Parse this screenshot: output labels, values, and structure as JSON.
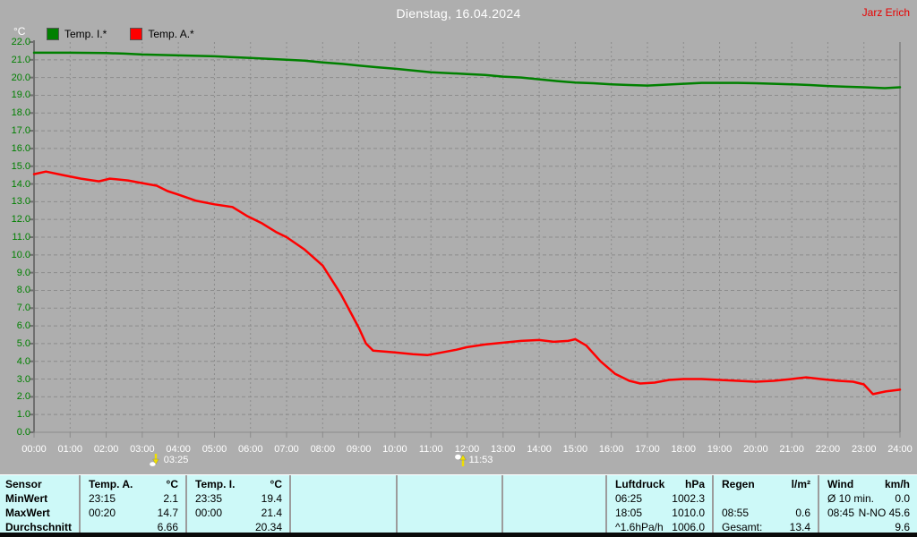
{
  "header": {
    "title": "Dienstag, 16.04.2024",
    "owner": "Jarz Erich"
  },
  "legend": {
    "unit_label": "°C",
    "series": [
      {
        "label": "Temp. I.*",
        "color": "#008000"
      },
      {
        "label": "Temp. A.*",
        "color": "#FF0000"
      }
    ]
  },
  "chart_data": {
    "type": "line",
    "title": "Dienstag, 16.04.2024",
    "xlabel": "",
    "ylabel": "°C",
    "xlim_hours": [
      0,
      24
    ],
    "ylim": [
      0,
      22
    ],
    "grid": true,
    "legend_position": "top-left",
    "x_tick_labels": [
      "00:00",
      "01:00",
      "02:00",
      "03:00",
      "04:00",
      "05:00",
      "06:00",
      "07:00",
      "08:00",
      "09:00",
      "10:00",
      "11:00",
      "12:00",
      "13:00",
      "14:00",
      "15:00",
      "16:00",
      "17:00",
      "18:00",
      "19:00",
      "20:00",
      "21:00",
      "22:00",
      "23:00",
      "24:00"
    ],
    "y_tick_labels": [
      "22.0",
      "21.0",
      "20.0",
      "19.0",
      "18.0",
      "17.0",
      "16.0",
      "15.0",
      "14.0",
      "13.0",
      "12.0",
      "11.0",
      "10.0",
      "9.0",
      "8.0",
      "7.0",
      "6.0",
      "5.0",
      "4.0",
      "3.0",
      "2.0",
      "1.0",
      "0.0"
    ],
    "series": [
      {
        "name": "Temp. I.*",
        "color": "#008000",
        "points": [
          [
            0,
            21.4
          ],
          [
            1,
            21.4
          ],
          [
            2,
            21.38
          ],
          [
            2.5,
            21.35
          ],
          [
            3,
            21.3
          ],
          [
            4,
            21.25
          ],
          [
            5,
            21.2
          ],
          [
            6,
            21.1
          ],
          [
            6.5,
            21.05
          ],
          [
            7,
            21.0
          ],
          [
            7.5,
            20.95
          ],
          [
            8,
            20.85
          ],
          [
            8.5,
            20.78
          ],
          [
            9,
            20.68
          ],
          [
            9.5,
            20.58
          ],
          [
            10,
            20.5
          ],
          [
            10.5,
            20.4
          ],
          [
            11,
            20.3
          ],
          [
            11.5,
            20.25
          ],
          [
            12,
            20.2
          ],
          [
            12.5,
            20.15
          ],
          [
            13,
            20.05
          ],
          [
            13.5,
            20.0
          ],
          [
            14,
            19.9
          ],
          [
            14.5,
            19.8
          ],
          [
            15,
            19.72
          ],
          [
            15.5,
            19.68
          ],
          [
            16,
            19.62
          ],
          [
            16.5,
            19.58
          ],
          [
            17,
            19.55
          ],
          [
            17.5,
            19.6
          ],
          [
            18,
            19.65
          ],
          [
            18.5,
            19.7
          ],
          [
            19,
            19.7
          ],
          [
            19.5,
            19.7
          ],
          [
            20,
            19.68
          ],
          [
            20.5,
            19.65
          ],
          [
            21,
            19.62
          ],
          [
            21.5,
            19.58
          ],
          [
            22,
            19.52
          ],
          [
            22.5,
            19.48
          ],
          [
            23,
            19.45
          ],
          [
            23.58,
            19.4
          ],
          [
            24,
            19.45
          ]
        ]
      },
      {
        "name": "Temp. A.*",
        "color": "#FF0000",
        "points": [
          [
            0,
            14.55
          ],
          [
            0.33,
            14.7
          ],
          [
            0.8,
            14.5
          ],
          [
            1.3,
            14.3
          ],
          [
            1.8,
            14.15
          ],
          [
            2.1,
            14.3
          ],
          [
            2.6,
            14.2
          ],
          [
            3,
            14.05
          ],
          [
            3.4,
            13.9
          ],
          [
            3.7,
            13.6
          ],
          [
            4,
            13.4
          ],
          [
            4.5,
            13.05
          ],
          [
            5,
            12.85
          ],
          [
            5.5,
            12.7
          ],
          [
            5.9,
            12.2
          ],
          [
            6.3,
            11.8
          ],
          [
            6.7,
            11.3
          ],
          [
            7,
            11.0
          ],
          [
            7.5,
            10.3
          ],
          [
            8,
            9.4
          ],
          [
            8.5,
            7.8
          ],
          [
            9,
            5.9
          ],
          [
            9.2,
            5.0
          ],
          [
            9.4,
            4.6
          ],
          [
            10,
            4.5
          ],
          [
            10.5,
            4.4
          ],
          [
            10.9,
            4.35
          ],
          [
            11.3,
            4.5
          ],
          [
            11.7,
            4.65
          ],
          [
            12,
            4.8
          ],
          [
            12.5,
            4.95
          ],
          [
            13,
            5.05
          ],
          [
            13.5,
            5.15
          ],
          [
            14,
            5.2
          ],
          [
            14.4,
            5.1
          ],
          [
            14.8,
            5.15
          ],
          [
            15,
            5.25
          ],
          [
            15.3,
            4.9
          ],
          [
            15.7,
            4.0
          ],
          [
            16.1,
            3.3
          ],
          [
            16.5,
            2.9
          ],
          [
            16.8,
            2.75
          ],
          [
            17.2,
            2.8
          ],
          [
            17.6,
            2.95
          ],
          [
            18,
            3.0
          ],
          [
            18.5,
            3.0
          ],
          [
            19,
            2.95
          ],
          [
            19.5,
            2.9
          ],
          [
            20,
            2.85
          ],
          [
            20.5,
            2.9
          ],
          [
            21,
            3.0
          ],
          [
            21.4,
            3.1
          ],
          [
            21.8,
            3.0
          ],
          [
            22.3,
            2.9
          ],
          [
            22.7,
            2.85
          ],
          [
            23,
            2.7
          ],
          [
            23.25,
            2.15
          ],
          [
            23.6,
            2.3
          ],
          [
            24,
            2.4
          ]
        ]
      }
    ],
    "annotations": [
      {
        "name": "moonset",
        "time": "03:25",
        "hour": 3.42
      },
      {
        "name": "moonrise",
        "time": "11:53",
        "hour": 11.88
      }
    ]
  },
  "summary_table": {
    "row_labels": [
      "Sensor",
      "MinWert",
      "MaxWert",
      "Durchschnitt"
    ],
    "columns": [
      {
        "name": "Temp. A.",
        "unit": "°C",
        "rows": [
          [
            "23:15",
            "2.1"
          ],
          [
            "00:20",
            "14.7"
          ],
          [
            "",
            "6.66"
          ]
        ]
      },
      {
        "name": "Temp. I.",
        "unit": "°C",
        "rows": [
          [
            "23:35",
            "19.4"
          ],
          [
            "00:00",
            "21.4"
          ],
          [
            "",
            "20.34"
          ]
        ]
      },
      {
        "name": "",
        "unit": "",
        "rows": [
          [
            "",
            ""
          ],
          [
            "",
            ""
          ],
          [
            "",
            ""
          ]
        ]
      },
      {
        "name": "",
        "unit": "",
        "rows": [
          [
            "",
            ""
          ],
          [
            "",
            ""
          ],
          [
            "",
            ""
          ]
        ]
      },
      {
        "name": "",
        "unit": "",
        "rows": [
          [
            "",
            ""
          ],
          [
            "",
            ""
          ],
          [
            "",
            ""
          ]
        ]
      },
      {
        "name": "Luftdruck",
        "unit": "hPa",
        "rows": [
          [
            "06:25",
            "1002.3"
          ],
          [
            "18:05",
            "1010.0"
          ],
          [
            "^1.6hPa/h",
            "1006.0"
          ]
        ]
      },
      {
        "name": "Regen",
        "unit": "l/m²",
        "rows": [
          [
            "",
            ""
          ],
          [
            "08:55",
            "0.6"
          ],
          [
            "Gesamt:",
            "13.4"
          ]
        ]
      },
      {
        "name": "Wind",
        "unit": "km/h",
        "rows": [
          [
            "Ø 10 min.",
            "0.0"
          ],
          [
            "08:45",
            "N-NO 45.6"
          ],
          [
            "",
            "9.6"
          ]
        ]
      }
    ]
  },
  "colors": {
    "background": "#AEAEAE",
    "gridline": "#8C8C8C",
    "axis": "#6F6F6F",
    "temp_i_line": "#008000",
    "temp_a_line": "#FF0000",
    "y_label": "#008000",
    "x_label": "#FFFFFF",
    "table_background": "#CDF9F8",
    "owner_text": "#E80000"
  }
}
